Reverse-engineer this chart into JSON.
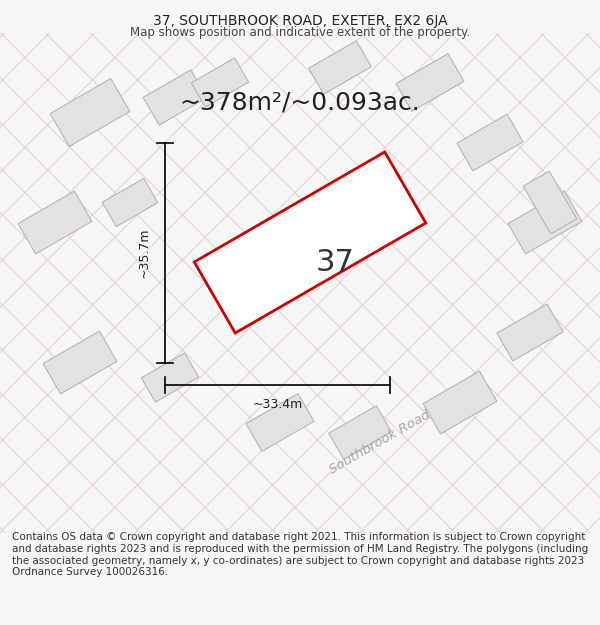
{
  "title": "37, SOUTHBROOK ROAD, EXETER, EX2 6JA",
  "subtitle": "Map shows position and indicative extent of the property.",
  "footer": "Contains OS data © Crown copyright and database right 2021. This information is subject to Crown copyright and database rights 2023 and is reproduced with the permission of HM Land Registry. The polygons (including the associated geometry, namely x, y co-ordinates) are subject to Crown copyright and database rights 2023 Ordnance Survey 100026316.",
  "area_label": "~378m²/~0.093ac.",
  "house_number": "37",
  "dim_height": "~35.7m",
  "dim_width": "~33.4m",
  "road_label": "Southbrook Road",
  "bg_color": "#f7f7f7",
  "map_bg": "#f5f3f3",
  "plot_outline_color": "#cc0000",
  "building_fill": "#e0e0e0",
  "building_outline": "#aaaaaa",
  "diag_line_color": "#e8c0c0",
  "title_fontsize": 10,
  "subtitle_fontsize": 8.5,
  "footer_fontsize": 7.5,
  "area_fontsize": 18,
  "number_fontsize": 22
}
